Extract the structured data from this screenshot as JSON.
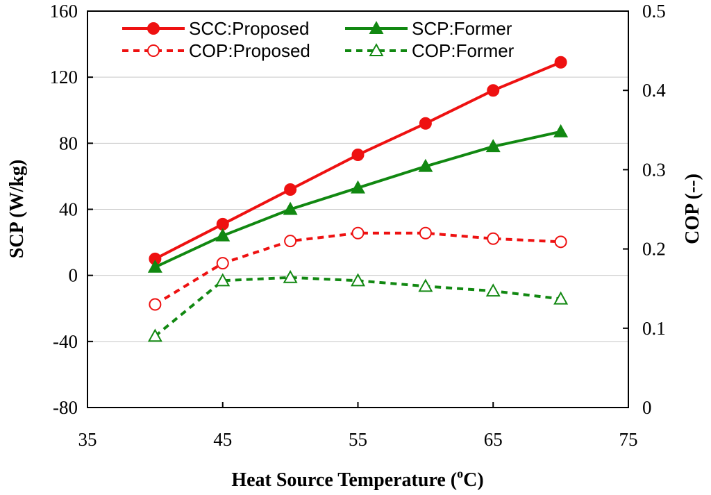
{
  "chart_data": {
    "type": "line",
    "title": "",
    "xlabel_main": "Heat Source Temperature (",
    "xlabel_sup": "o",
    "xlabel_end": "C)",
    "ylabel_left": "SCP (W/kg)",
    "ylabel_right": "COP (--)",
    "xlim": [
      35,
      75
    ],
    "ylim_left": [
      -80,
      160
    ],
    "ylim_right": [
      0,
      0.5
    ],
    "x_ticks": [
      35,
      45,
      55,
      65,
      75
    ],
    "y_left_ticks": [
      -80,
      -40,
      0,
      40,
      80,
      120,
      160
    ],
    "y_right_ticks": [
      0,
      0.1,
      0.2,
      0.3,
      0.4,
      0.5
    ],
    "y_left_tick_labels": [
      "-80",
      "-40",
      "0",
      "40",
      "80",
      "120",
      "160"
    ],
    "y_right_tick_labels": [
      "0",
      "0.1",
      "0.2",
      "0.3",
      "0.4",
      "0.5"
    ],
    "x_tick_labels": [
      "35",
      "45",
      "55",
      "65",
      "75"
    ],
    "grid": "horizontal",
    "legend_position": "top",
    "x": [
      40,
      45,
      50,
      55,
      60,
      65,
      70
    ],
    "series": [
      {
        "name": "SCC:Proposed",
        "axis": "left",
        "color": "#ee1111",
        "dash": "solid",
        "marker": "circle",
        "filled": true,
        "values": [
          10,
          31,
          52,
          73,
          92,
          112,
          129
        ]
      },
      {
        "name": "SCP:Former",
        "axis": "left",
        "color": "#118811",
        "dash": "solid",
        "marker": "triangle",
        "filled": true,
        "values": [
          5,
          24,
          40,
          53,
          66,
          78,
          87
        ]
      },
      {
        "name": "COP:Proposed",
        "axis": "right",
        "color": "#ee1111",
        "dash": "dashed",
        "marker": "circle",
        "filled": false,
        "values": [
          0.13,
          0.182,
          0.21,
          0.22,
          0.22,
          0.213,
          0.209
        ]
      },
      {
        "name": "COP:Former",
        "axis": "right",
        "color": "#118811",
        "dash": "dashed",
        "marker": "triangle",
        "filled": false,
        "values": [
          0.09,
          0.16,
          0.164,
          0.16,
          0.153,
          0.147,
          0.137
        ]
      }
    ]
  }
}
